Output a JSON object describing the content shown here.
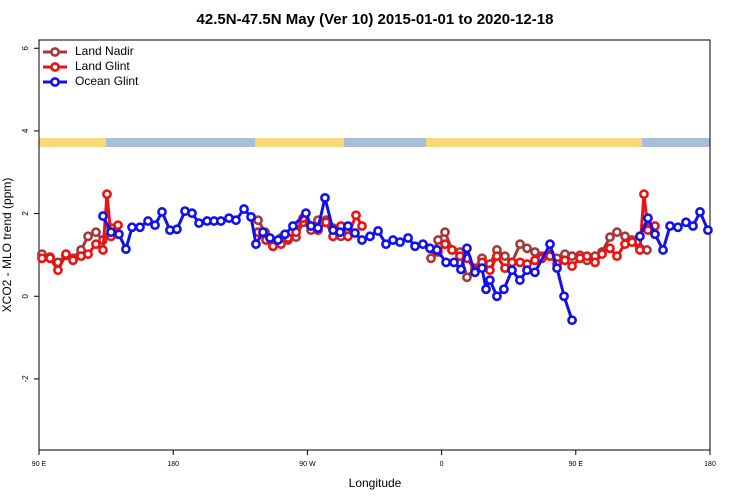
{
  "chart_data": {
    "type": "line",
    "title": "42.5N-47.5N May (Ver 10)   2015-01-01 to 2020-12-18",
    "xlabel": "Longitude",
    "ylabel": "XCO2 - MLO trend (ppm)",
    "xlim": [
      90,
      540
    ],
    "xticks": [
      {
        "value": 90,
        "label": "90 E"
      },
      {
        "value": 180,
        "label": "180"
      },
      {
        "value": 270,
        "label": "90 W"
      },
      {
        "value": 360,
        "label": "0"
      },
      {
        "value": 450,
        "label": "90 E"
      },
      {
        "value": 540,
        "label": "180"
      }
    ],
    "ylim": [
      -3.72,
      6.2
    ],
    "yticks": [
      -2,
      0,
      2,
      4,
      6
    ],
    "legend": "upper left",
    "series": [
      {
        "name": "Land Nadir",
        "color": "#a33a3a",
        "x": [
          92.0,
          97.4,
          102.7,
          108.1,
          112.8,
          118.2,
          122.9,
          128.2,
          132.9,
          138.3,
          null,
          236.9,
          241.6,
          246.9,
          252.3,
          257.0,
          262.4,
          267.1,
          272.4,
          277.1,
          282.5,
          287.2,
          292.5,
          297.2,
          null,
          352.9,
          357.6,
          362.3,
          367.0,
          372.3,
          377.0,
          382.4,
          387.1,
          392.4,
          397.1,
          402.5,
          407.2,
          412.6,
          417.3,
          422.6,
          427.3,
          432.7,
          437.4,
          442.7,
          447.5,
          452.8,
          457.5,
          462.9,
          467.6,
          472.9,
          477.6,
          483.0,
          487.7,
          493.0,
          497.7
        ],
        "values": [
          1.02,
          0.95,
          0.82,
          0.99,
          0.92,
          1.12,
          1.45,
          1.55,
          1.36,
          1.65,
          null,
          1.84,
          1.55,
          1.21,
          1.41,
          1.36,
          1.43,
          1.79,
          1.6,
          1.84,
          1.84,
          1.65,
          1.45,
          1.6,
          null,
          0.92,
          1.36,
          1.55,
          1.12,
          1.07,
          0.46,
          0.68,
          0.92,
          0.78,
          1.12,
          0.97,
          0.82,
          1.26,
          1.16,
          1.07,
          0.97,
          1.02,
          0.92,
          1.02,
          0.97,
          0.99,
          0.87,
          0.97,
          1.07,
          1.43,
          1.55,
          1.45,
          1.36,
          1.16,
          1.12
        ]
      },
      {
        "name": "Land Glint",
        "color": "#ee1111",
        "x": [
          92.0,
          97.4,
          102.7,
          108.1,
          112.8,
          118.2,
          122.9,
          128.2,
          132.9,
          135.6,
          138.3,
          143.0,
          null,
          236.9,
          242.2,
          246.9,
          252.3,
          257.0,
          262.4,
          267.1,
          272.4,
          277.1,
          282.5,
          287.2,
          292.5,
          297.2,
          302.6,
          306.6,
          null,
          357.6,
          362.3,
          367.0,
          372.3,
          377.0,
          382.4,
          387.1,
          392.4,
          397.1,
          402.5,
          407.2,
          412.6,
          417.3,
          422.6,
          427.3,
          432.7,
          437.4,
          442.7,
          447.5,
          452.8,
          457.5,
          462.9,
          467.6,
          472.9,
          477.6,
          483.0,
          487.7,
          493.0,
          495.7,
          498.4,
          503.1
        ],
        "values": [
          0.92,
          0.92,
          0.63,
          1.02,
          0.87,
          0.97,
          1.02,
          1.26,
          1.12,
          2.47,
          1.45,
          1.72,
          null,
          1.55,
          1.36,
          1.21,
          1.26,
          1.41,
          1.55,
          1.89,
          1.7,
          1.6,
          1.79,
          1.45,
          1.7,
          1.45,
          1.96,
          1.7,
          null,
          1.07,
          1.26,
          1.12,
          0.97,
          0.92,
          0.63,
          0.82,
          0.63,
          0.97,
          0.68,
          0.82,
          0.82,
          0.78,
          0.87,
          0.92,
          0.97,
          0.78,
          0.87,
          0.73,
          0.92,
          0.97,
          0.82,
          1.02,
          1.16,
          0.97,
          1.26,
          1.31,
          1.12,
          2.47,
          1.6,
          1.7
        ]
      },
      {
        "name": "Ocean Glint",
        "color": "#1111ee",
        "x": [
          132.9,
          138.3,
          143.6,
          148.3,
          152.4,
          157.7,
          163.1,
          167.8,
          172.5,
          177.8,
          182.5,
          187.9,
          192.6,
          197.3,
          202.7,
          207.4,
          212.0,
          217.4,
          222.1,
          227.5,
          232.2,
          235.5,
          240.2,
          244.9,
          250.3,
          255.0,
          260.3,
          269.0,
          272.4,
          277.1,
          281.8,
          287.2,
          291.9,
          297.2,
          301.9,
          306.6,
          312.0,
          317.4,
          322.7,
          327.4,
          332.1,
          337.5,
          342.2,
          347.5,
          352.2,
          356.9,
          363.0,
          368.3,
          373.0,
          377.0,
          382.4,
          387.1,
          389.8,
          392.4,
          397.1,
          401.8,
          407.2,
          412.5,
          417.3,
          422.6,
          432.7,
          437.4,
          442.1,
          447.5,
          null,
          493.0,
          498.4,
          503.1,
          508.5,
          513.2,
          518.5,
          523.9,
          528.6,
          533.3,
          538.6
        ],
        "values": [
          1.94,
          1.55,
          1.5,
          1.14,
          1.67,
          1.67,
          1.82,
          1.72,
          2.04,
          1.6,
          1.62,
          2.06,
          2.01,
          1.77,
          1.82,
          1.82,
          1.82,
          1.89,
          1.84,
          2.11,
          1.92,
          1.26,
          1.55,
          1.41,
          1.36,
          1.5,
          1.7,
          2.01,
          1.7,
          1.65,
          2.38,
          1.6,
          1.55,
          1.7,
          1.53,
          1.36,
          1.45,
          1.58,
          1.26,
          1.36,
          1.31,
          1.41,
          1.21,
          1.26,
          1.16,
          1.12,
          0.82,
          0.82,
          0.65,
          1.16,
          0.58,
          0.68,
          0.17,
          0.39,
          0,
          0.17,
          0.63,
          0.39,
          0.63,
          0.58,
          1.26,
          0.68,
          0,
          -0.58,
          null,
          1.45,
          1.89,
          1.5,
          1.12,
          1.7,
          1.67,
          1.79,
          1.7,
          2.04,
          1.6
        ]
      }
    ]
  }
}
